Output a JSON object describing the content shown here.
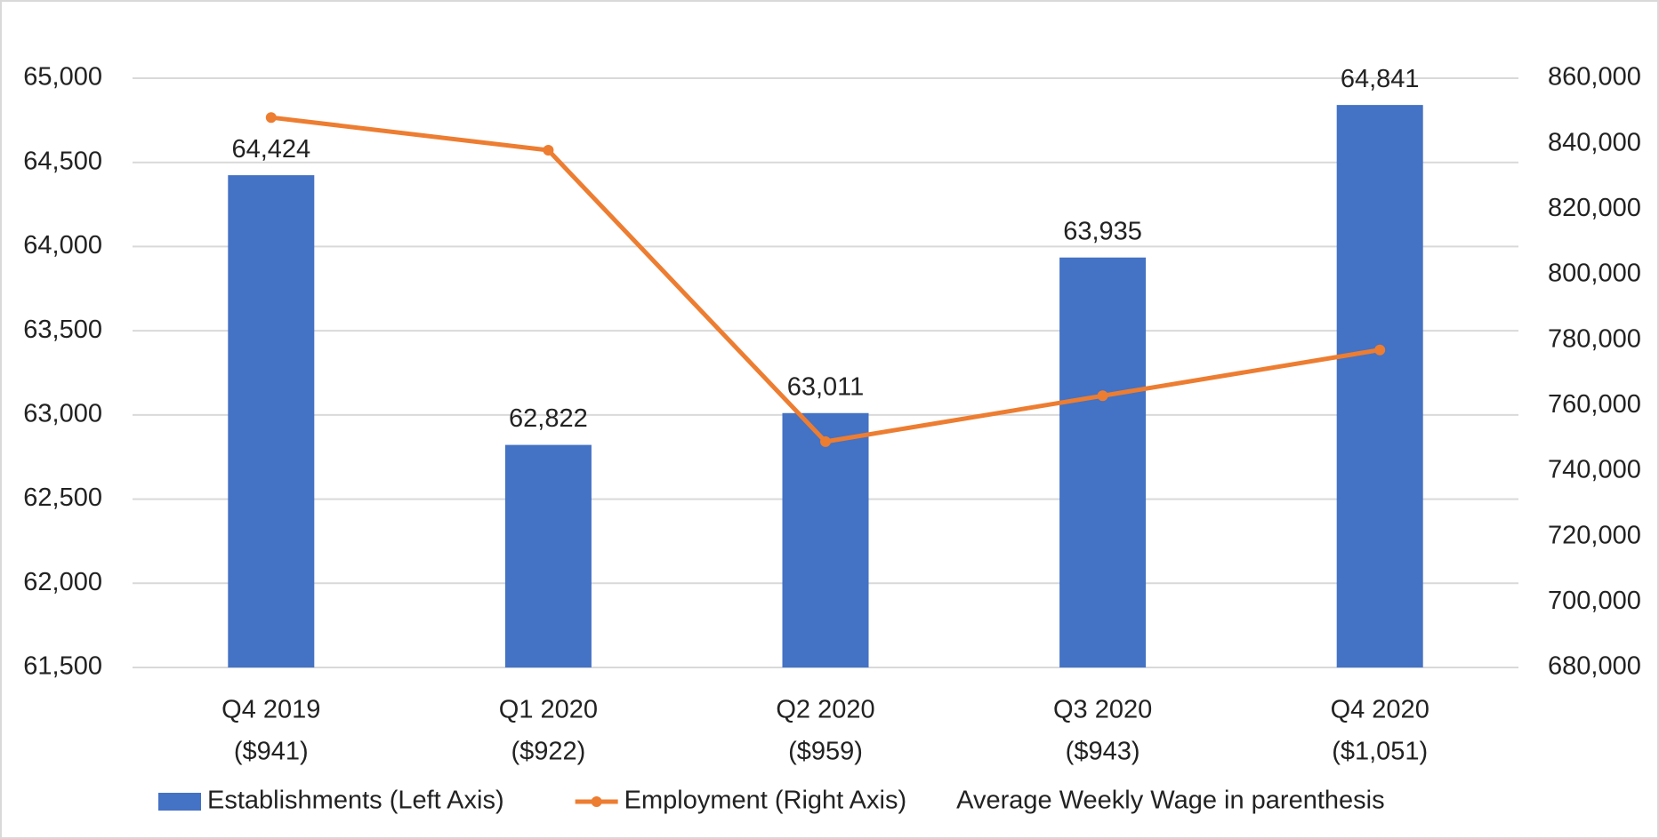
{
  "chart_data": {
    "type": "bar-line",
    "categories": [
      [
        "Q4 2019",
        "($941)"
      ],
      [
        "Q1 2020",
        "($922)"
      ],
      [
        "Q2 2020",
        "($959)"
      ],
      [
        "Q3 2020",
        "($943)"
      ],
      [
        "Q4 2020",
        "($1,051)"
      ]
    ],
    "series": [
      {
        "name": "Establishments (Left Axis)",
        "type": "bar",
        "color": "#4472c4",
        "values": [
          64424,
          62822,
          63011,
          63935,
          64841
        ],
        "value_labels": [
          "64,424",
          "62,822",
          "63,011",
          "63,935",
          "64,841"
        ]
      },
      {
        "name": "Employment (Right Axis)",
        "type": "line",
        "axis": "y2",
        "color": "#ed7d31",
        "values": [
          848000,
          838000,
          749000,
          763000,
          777000
        ]
      }
    ],
    "legend_note": "Average Weekly Wage in parenthesis",
    "ylim": [
      61500,
      65000
    ],
    "yticks": [
      {
        "value": 61500,
        "label": "61,500"
      },
      {
        "value": 62000,
        "label": "62,000"
      },
      {
        "value": 62500,
        "label": "62,500"
      },
      {
        "value": 63000,
        "label": "63,000"
      },
      {
        "value": 63500,
        "label": "63,500"
      },
      {
        "value": 64000,
        "label": "64,000"
      },
      {
        "value": 64500,
        "label": "64,500"
      },
      {
        "value": 65000,
        "label": "65,000"
      }
    ],
    "y2lim": [
      680000,
      860000
    ],
    "y2ticks": [
      {
        "value": 680000,
        "label": "680,000"
      },
      {
        "value": 700000,
        "label": "700,000"
      },
      {
        "value": 720000,
        "label": "720,000"
      },
      {
        "value": 740000,
        "label": "740,000"
      },
      {
        "value": 760000,
        "label": "760,000"
      },
      {
        "value": 780000,
        "label": "780,000"
      },
      {
        "value": 800000,
        "label": "800,000"
      },
      {
        "value": 820000,
        "label": "820,000"
      },
      {
        "value": 840000,
        "label": "840,000"
      },
      {
        "value": 860000,
        "label": "860,000"
      }
    ],
    "grid": true
  }
}
